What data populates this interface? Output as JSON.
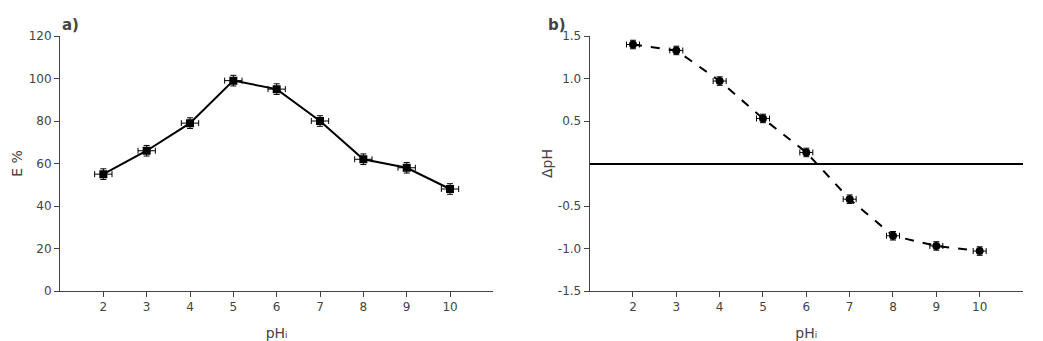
{
  "chart_data": [
    {
      "type": "line",
      "xlabel": "pHᵢ",
      "ylabel": "E %",
      "annotations": [
        "a)"
      ],
      "x": [
        2,
        3,
        4,
        5,
        6,
        7,
        8,
        9,
        10
      ],
      "values": [
        55,
        66,
        79,
        99,
        95,
        80,
        62,
        58,
        48
      ],
      "xerr": [
        0.2,
        0.2,
        0.2,
        0.2,
        0.2,
        0.2,
        0.2,
        0.2,
        0.2
      ],
      "yerr": [
        2.5,
        2.5,
        2.5,
        2.5,
        2.5,
        2.5,
        2.5,
        2.5,
        2.5
      ],
      "xlim": [
        1,
        11
      ],
      "ylim": [
        0,
        120
      ],
      "xticks": [
        2,
        3,
        4,
        5,
        6,
        7,
        8,
        9,
        10
      ],
      "yticks": [
        0,
        20,
        40,
        60,
        80,
        100,
        120
      ],
      "color": "#000000",
      "marker": "square",
      "line_style": "solid",
      "grid": false
    },
    {
      "type": "line",
      "xlabel": "pHᵢ",
      "ylabel": "ΔpH",
      "annotations": [
        "b)"
      ],
      "x": [
        2,
        3,
        4,
        5,
        6,
        7,
        8,
        9,
        10
      ],
      "values": [
        1.4,
        1.33,
        0.97,
        0.53,
        0.13,
        -0.42,
        -0.85,
        -0.97,
        -1.03
      ],
      "xerr": [
        0.15,
        0.15,
        0.15,
        0.15,
        0.15,
        0.15,
        0.15,
        0.15,
        0.15
      ],
      "yerr": [
        0.05,
        0.05,
        0.05,
        0.05,
        0.05,
        0.05,
        0.05,
        0.05,
        0.05
      ],
      "xlim": [
        1,
        11
      ],
      "ylim": [
        -1.5,
        1.5
      ],
      "xticks": [
        2,
        3,
        4,
        5,
        6,
        7,
        8,
        9,
        10
      ],
      "yticks": [
        -1.5,
        {
          "value": -1.0,
          "label": "-1.0"
        },
        -0.5,
        0.5,
        {
          "value": 1.0,
          "label": "1.0"
        },
        1.5
      ],
      "color": "#000000",
      "marker": "circle",
      "line_style": "dashed",
      "grid": false
    }
  ]
}
